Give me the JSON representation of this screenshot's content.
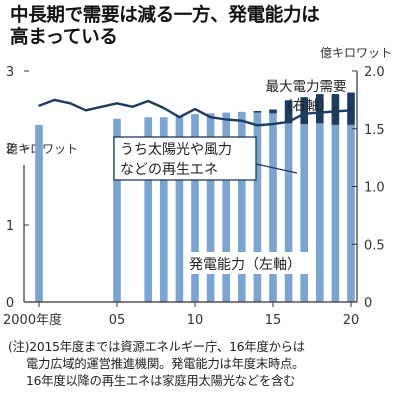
{
  "title": {
    "line1": "中長期で需要は減る一方、発電能力は",
    "line2": "高まっている"
  },
  "units": {
    "left": "億キロワット",
    "right": "億キロワット"
  },
  "colors": {
    "capacity": "#7aa5d2",
    "renewable": "#1d3a5f",
    "demand_line": "#1d3a5f",
    "axis": "#333333"
  },
  "annotations": {
    "demand": [
      "最大電力需要",
      "（右軸）"
    ],
    "renewable": [
      "うち太陽光や風力",
      "などの再生エネ"
    ],
    "capacity": "発電能力（左軸）"
  },
  "notes": [
    "(注)2015年度までは資源エネルギー庁、16年度からは",
    "電力広域的運営推進機関。発電能力は年度末時点。",
    "16年度以降の再生エネは家庭用太陽光などを含む"
  ],
  "chart_data": {
    "type": "bar",
    "x": [
      2000,
      2001,
      2002,
      2003,
      2004,
      2005,
      2006,
      2007,
      2008,
      2009,
      2010,
      2011,
      2012,
      2013,
      2014,
      2015,
      2016,
      2017,
      2018,
      2019,
      2020
    ],
    "x_tick_labels": [
      "2000年度",
      "05",
      "10",
      "15",
      "20"
    ],
    "x_tick_values": [
      2000,
      2005,
      2010,
      2015,
      2020
    ],
    "series": [
      {
        "name": "発電能力（左軸）",
        "axis": "left",
        "style": "bar",
        "values": [
          2.3,
          null,
          null,
          null,
          null,
          2.38,
          null,
          2.4,
          2.4,
          2.42,
          2.44,
          2.45,
          2.46,
          2.47,
          2.48,
          2.5,
          2.62,
          2.66,
          2.7,
          2.7,
          2.72
        ]
      },
      {
        "name": "うち太陽光や風力などの再生エネ",
        "axis": "left",
        "style": "bar-stack",
        "values": [
          0,
          null,
          null,
          null,
          null,
          0,
          null,
          0,
          0,
          0,
          0,
          0,
          0,
          0,
          0.02,
          0.05,
          0.3,
          0.35,
          0.38,
          0.4,
          0.42
        ]
      },
      {
        "name": "最大電力需要（右軸）",
        "axis": "right",
        "style": "line",
        "values": [
          1.7,
          1.75,
          1.72,
          1.66,
          1.69,
          1.72,
          1.69,
          1.74,
          1.68,
          1.6,
          1.67,
          1.6,
          1.58,
          1.57,
          1.53,
          1.54,
          1.56,
          1.63,
          1.64,
          1.65,
          1.66
        ]
      }
    ],
    "ylim_left": [
      0,
      3
    ],
    "ylim_right": [
      0,
      2
    ],
    "yticks_left": [
      "0",
      "1",
      "2",
      "3"
    ],
    "yticks_right": [
      "0",
      "0.5",
      "1.0",
      "1.5",
      "2.0"
    ],
    "grid": false,
    "legend": "none"
  }
}
